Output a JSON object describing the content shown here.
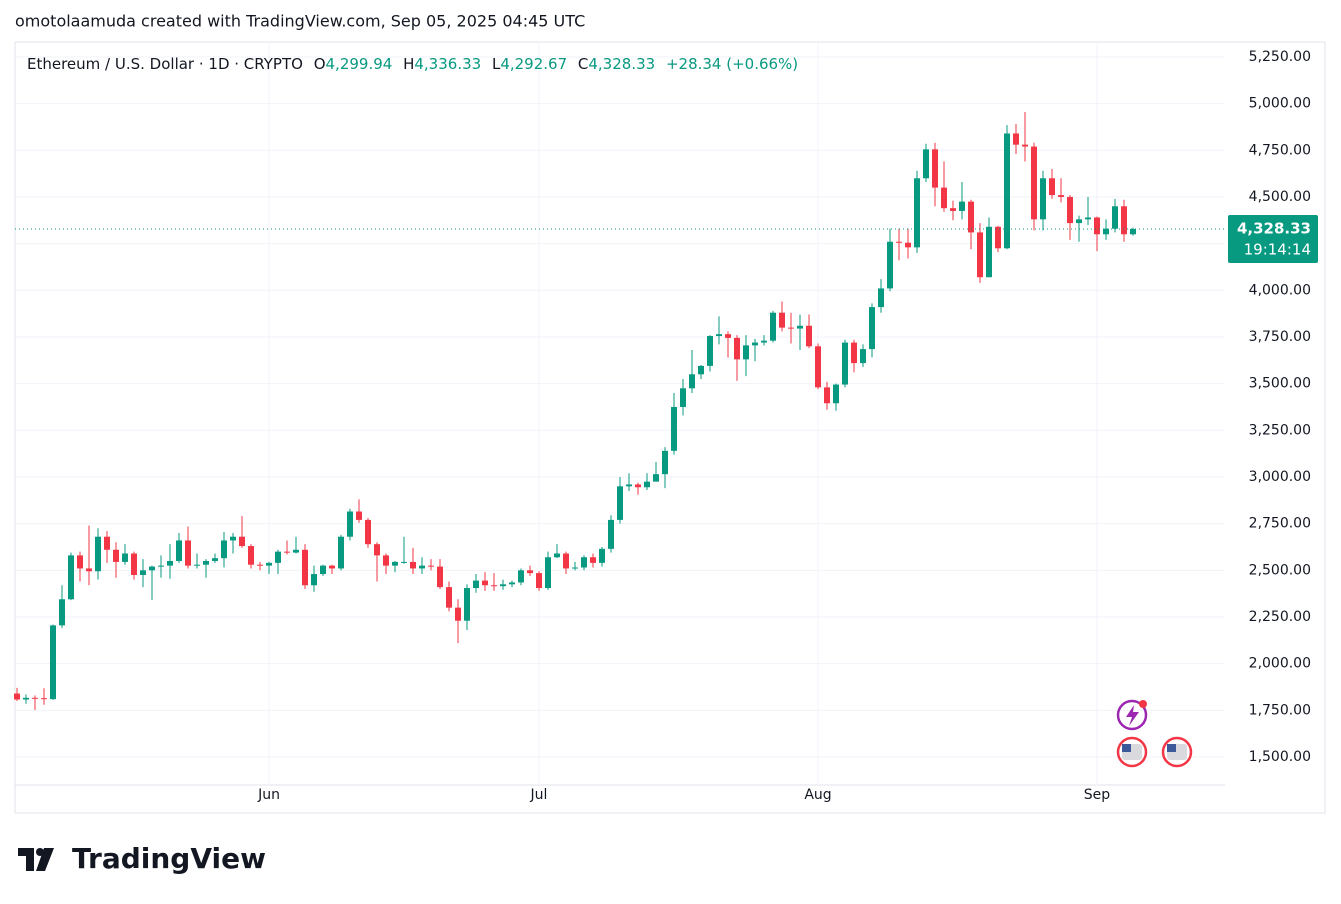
{
  "chart_data": {
    "type": "candlestick",
    "credit": "omotolaamuda created with TradingView.com, Sep 05, 2025 04:45 UTC",
    "brand": "TradingView",
    "header": {
      "symbol": "Ethereum / U.S. Dollar · 1D · CRYPTO",
      "open": {
        "label": "O",
        "value": "4,299.94"
      },
      "high": {
        "label": "H",
        "value": "4,336.33"
      },
      "low": {
        "label": "L",
        "value": "4,292.67"
      },
      "close": {
        "label": "C",
        "value": "4,328.33"
      },
      "change": "+28.34 (+0.66%)"
    },
    "last_price": {
      "value": 4328.33,
      "label": "4,328.33"
    },
    "countdown": "19:14:14",
    "up_color": "#089981",
    "down_color": "#f23645",
    "grid": true,
    "ylim": [
      1350,
      5330
    ],
    "yticks": [
      {
        "value": 1500,
        "label": "1,500.00"
      },
      {
        "value": 1750,
        "label": "1,750.00"
      },
      {
        "value": 2000,
        "label": "2,000.00"
      },
      {
        "value": 2250,
        "label": "2,250.00"
      },
      {
        "value": 2500,
        "label": "2,500.00"
      },
      {
        "value": 2750,
        "label": "2,750.00"
      },
      {
        "value": 3000,
        "label": "3,000.00"
      },
      {
        "value": 3250,
        "label": "3,250.00"
      },
      {
        "value": 3500,
        "label": "3,500.00"
      },
      {
        "value": 3750,
        "label": "3,750.00"
      },
      {
        "value": 4000,
        "label": "4,000.00"
      },
      {
        "value": 4250,
        "label": "4,250.00"
      },
      {
        "value": 4500,
        "label": "4,500.00"
      },
      {
        "value": 4750,
        "label": "4,750.00"
      },
      {
        "value": 5000,
        "label": "5,000.00"
      },
      {
        "value": 5250,
        "label": "5,250.00"
      }
    ],
    "categories": [
      null,
      null,
      null,
      null,
      null,
      null,
      null,
      null,
      null,
      null,
      null,
      null,
      null,
      null,
      null,
      null,
      null,
      null,
      null,
      null,
      null,
      null,
      null,
      null,
      null,
      null,
      null,
      null,
      "Jun",
      null,
      null,
      null,
      null,
      null,
      null,
      null,
      null,
      null,
      null,
      null,
      null,
      null,
      null,
      null,
      null,
      null,
      null,
      null,
      null,
      null,
      null,
      null,
      null,
      null,
      null,
      null,
      null,
      null,
      "Jul",
      null,
      null,
      null,
      null,
      null,
      null,
      null,
      null,
      null,
      null,
      null,
      null,
      null,
      null,
      null,
      null,
      null,
      null,
      null,
      null,
      null,
      null,
      null,
      null,
      null,
      null,
      null,
      null,
      null,
      null,
      "Aug",
      null,
      null,
      null,
      null,
      null,
      null,
      null,
      null,
      null,
      null,
      null,
      null,
      null,
      null,
      null,
      null,
      null,
      null,
      null,
      null,
      null,
      null,
      null,
      null,
      null,
      null,
      null,
      null,
      null,
      null,
      "Sep",
      null,
      null,
      null,
      null
    ],
    "open": [
      1840,
      1808,
      1817,
      1815,
      1810,
      2205,
      2345,
      2580,
      2510,
      2495,
      2680,
      2610,
      2545,
      2590,
      2475,
      2500,
      2520,
      2525,
      2550,
      2660,
      2525,
      2530,
      2550,
      2565,
      2660,
      2680,
      2630,
      2530,
      2525,
      2540,
      2600,
      2595,
      2610,
      2420,
      2480,
      2525,
      2510,
      2680,
      2815,
      2770,
      2640,
      2580,
      2525,
      2545,
      2545,
      2510,
      2525,
      2520,
      2410,
      2300,
      2230,
      2405,
      2445,
      2420,
      2415,
      2425,
      2435,
      2500,
      2485,
      2405,
      2570,
      2590,
      2510,
      2515,
      2570,
      2540,
      2615,
      2770,
      2950,
      2960,
      2945,
      2975,
      3015,
      3140,
      3375,
      3475,
      3550,
      3595,
      3755,
      3765,
      3745,
      3630,
      3705,
      3720,
      3730,
      3880,
      3800,
      3795,
      3810,
      3700,
      3480,
      3395,
      3495,
      3720,
      3610,
      3685,
      3910,
      4010,
      4260,
      4255,
      4230,
      4600,
      4755,
      4550,
      4440,
      4425,
      4475,
      4310,
      4070,
      4340,
      4225,
      4840,
      4780,
      4770,
      4380,
      4600,
      4510,
      4500,
      4360,
      4380,
      4390,
      4300,
      4330,
      4450,
      4299.94
    ],
    "high": [
      1870,
      1835,
      1830,
      1868,
      2210,
      2420,
      2595,
      2600,
      2740,
      2725,
      2710,
      2650,
      2640,
      2600,
      2560,
      2525,
      2580,
      2640,
      2700,
      2735,
      2590,
      2560,
      2590,
      2705,
      2700,
      2790,
      2640,
      2545,
      2545,
      2610,
      2660,
      2680,
      2640,
      2525,
      2530,
      2530,
      2690,
      2830,
      2880,
      2780,
      2650,
      2590,
      2550,
      2680,
      2620,
      2570,
      2560,
      2560,
      2440,
      2345,
      2425,
      2480,
      2490,
      2485,
      2450,
      2445,
      2510,
      2525,
      2495,
      2600,
      2640,
      2600,
      2545,
      2580,
      2590,
      2625,
      2795,
      3000,
      3020,
      2970,
      3020,
      3080,
      3160,
      3450,
      3525,
      3680,
      3600,
      3760,
      3860,
      3780,
      3760,
      3760,
      3740,
      3760,
      3890,
      3940,
      3880,
      3870,
      3870,
      3715,
      3510,
      3500,
      3735,
      3735,
      3710,
      3930,
      4060,
      4330,
      4330,
      4330,
      4640,
      4785,
      4790,
      4690,
      4480,
      4580,
      4485,
      4360,
      4390,
      4345,
      4885,
      4890,
      4955,
      4790,
      4640,
      4650,
      4600,
      4510,
      4400,
      4500,
      4395,
      4380,
      4490,
      4485,
      4336.33
    ],
    "low": [
      1800,
      1785,
      1752,
      1780,
      1805,
      2190,
      2340,
      2440,
      2420,
      2450,
      2540,
      2460,
      2530,
      2450,
      2410,
      2340,
      2460,
      2455,
      2540,
      2510,
      2510,
      2460,
      2540,
      2515,
      2590,
      2620,
      2510,
      2500,
      2480,
      2480,
      2585,
      2590,
      2400,
      2385,
      2470,
      2480,
      2500,
      2660,
      2755,
      2620,
      2440,
      2480,
      2490,
      2535,
      2480,
      2480,
      2500,
      2400,
      2280,
      2110,
      2180,
      2380,
      2390,
      2390,
      2395,
      2410,
      2420,
      2470,
      2390,
      2395,
      2565,
      2480,
      2500,
      2500,
      2515,
      2520,
      2595,
      2750,
      2925,
      2905,
      2930,
      2975,
      2940,
      3120,
      3330,
      3450,
      3525,
      3565,
      3710,
      3640,
      3515,
      3540,
      3620,
      3705,
      3720,
      3780,
      3715,
      3680,
      3690,
      3470,
      3360,
      3355,
      3480,
      3560,
      3590,
      3640,
      3880,
      3995,
      4160,
      4170,
      4200,
      4580,
      4450,
      4420,
      4375,
      4380,
      4220,
      4040,
      4070,
      4205,
      4220,
      4730,
      4690,
      4320,
      4320,
      4490,
      4470,
      4270,
      4260,
      4350,
      4210,
      4270,
      4310,
      4260,
      4292.67
    ],
    "close": [
      1808,
      1817,
      1815,
      1810,
      2205,
      2345,
      2580,
      2510,
      2495,
      2680,
      2610,
      2545,
      2590,
      2475,
      2500,
      2520,
      2525,
      2550,
      2660,
      2525,
      2530,
      2550,
      2565,
      2660,
      2680,
      2630,
      2530,
      2525,
      2540,
      2600,
      2595,
      2610,
      2420,
      2480,
      2525,
      2510,
      2680,
      2815,
      2770,
      2640,
      2580,
      2525,
      2545,
      2545,
      2510,
      2525,
      2520,
      2410,
      2300,
      2230,
      2405,
      2445,
      2420,
      2415,
      2425,
      2435,
      2500,
      2485,
      2405,
      2570,
      2590,
      2510,
      2515,
      2570,
      2540,
      2615,
      2770,
      2950,
      2960,
      2945,
      2975,
      3015,
      3140,
      3375,
      3475,
      3550,
      3595,
      3755,
      3765,
      3745,
      3630,
      3705,
      3720,
      3730,
      3880,
      3800,
      3795,
      3810,
      3700,
      3480,
      3395,
      3495,
      3720,
      3610,
      3685,
      3910,
      4010,
      4260,
      4255,
      4230,
      4600,
      4755,
      4550,
      4440,
      4425,
      4475,
      4310,
      4070,
      4340,
      4225,
      4840,
      4780,
      4770,
      4380,
      4600,
      4510,
      4500,
      4360,
      4380,
      4390,
      4300,
      4330,
      4450,
      4300,
      4328.33
    ]
  }
}
